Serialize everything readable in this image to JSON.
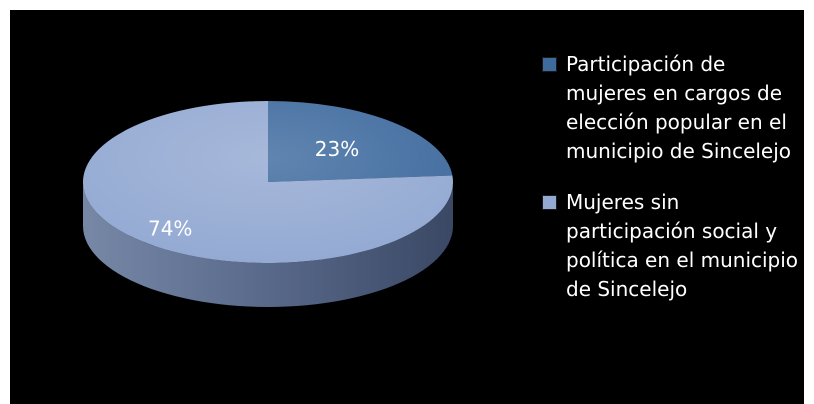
{
  "colors": {
    "series_1": "#3e6a9e",
    "series_2": "#93a9d2",
    "background": "#000000"
  },
  "chart_data": {
    "type": "pie",
    "style": "3d",
    "title": "",
    "legend_position": "right",
    "slices": [
      {
        "label": "Participación de mujeres en cargos de elección popular en el municipio de Sincelejo",
        "value": 23,
        "display": "23%"
      },
      {
        "label": "Mujeres sin participación social y política en el municipio de Sincelejo",
        "value": 74,
        "display": "74%"
      }
    ]
  }
}
